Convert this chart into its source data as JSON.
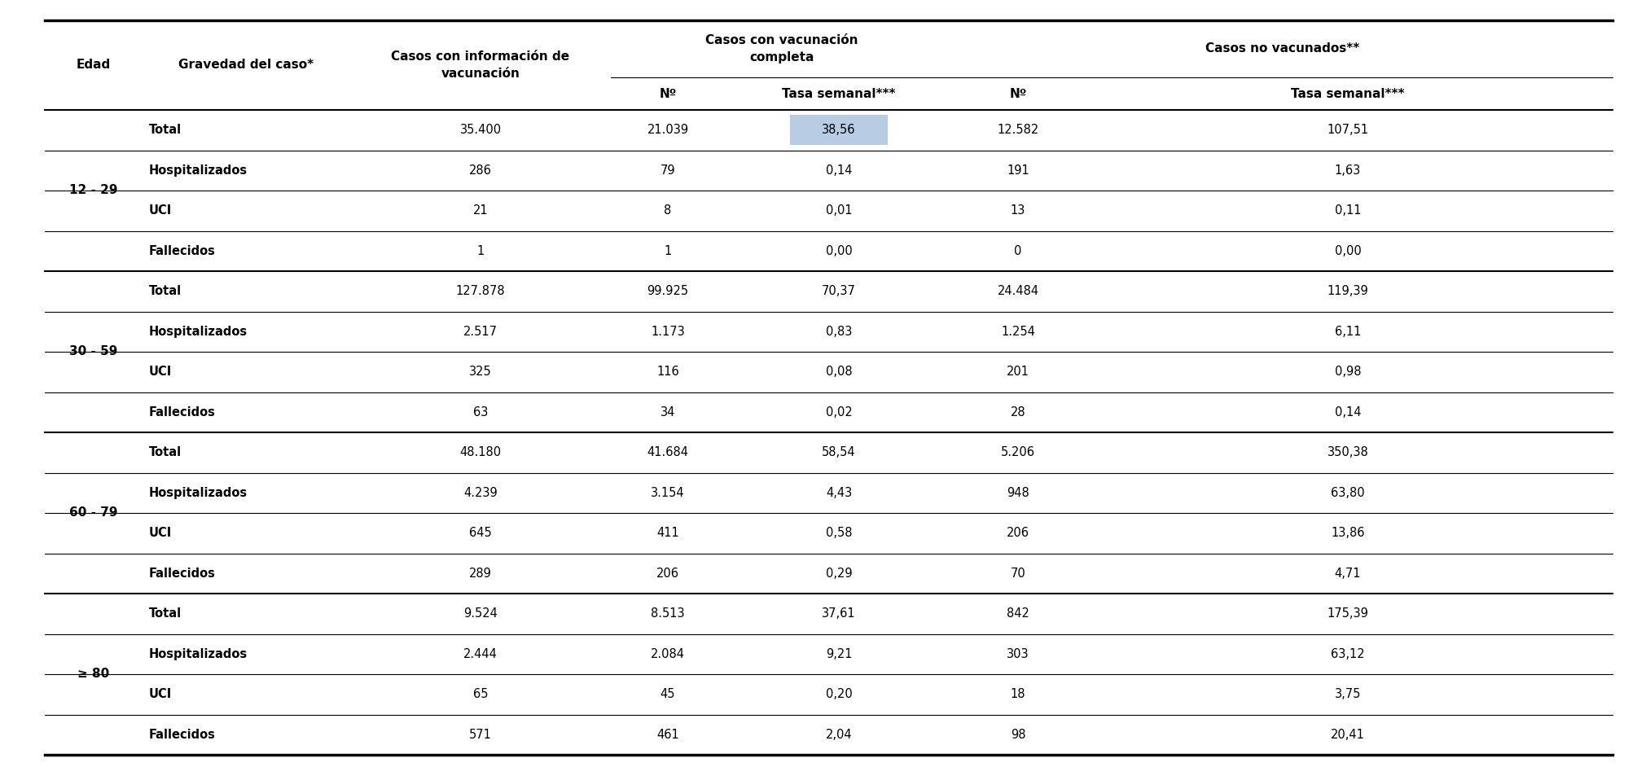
{
  "bg_color": "#ffffff",
  "groups": [
    {
      "age": "12 - 29",
      "rows": [
        {
          "gravedad": "Total",
          "info_vac": "35.400",
          "comp_n": "21.039",
          "comp_tasa": "38,56",
          "novac_n": "12.582",
          "novac_tasa": "107,51",
          "highlight_tasa": true
        },
        {
          "gravedad": "Hospitalizados",
          "info_vac": "286",
          "comp_n": "79",
          "comp_tasa": "0,14",
          "novac_n": "191",
          "novac_tasa": "1,63",
          "highlight_tasa": false
        },
        {
          "gravedad": "UCI",
          "info_vac": "21",
          "comp_n": "8",
          "comp_tasa": "0,01",
          "novac_n": "13",
          "novac_tasa": "0,11",
          "highlight_tasa": false
        },
        {
          "gravedad": "Fallecidos",
          "info_vac": "1",
          "comp_n": "1",
          "comp_tasa": "0,00",
          "novac_n": "0",
          "novac_tasa": "0,00",
          "highlight_tasa": false
        }
      ]
    },
    {
      "age": "30 - 59",
      "rows": [
        {
          "gravedad": "Total",
          "info_vac": "127.878",
          "comp_n": "99.925",
          "comp_tasa": "70,37",
          "novac_n": "24.484",
          "novac_tasa": "119,39",
          "highlight_tasa": false
        },
        {
          "gravedad": "Hospitalizados",
          "info_vac": "2.517",
          "comp_n": "1.173",
          "comp_tasa": "0,83",
          "novac_n": "1.254",
          "novac_tasa": "6,11",
          "highlight_tasa": false
        },
        {
          "gravedad": "UCI",
          "info_vac": "325",
          "comp_n": "116",
          "comp_tasa": "0,08",
          "novac_n": "201",
          "novac_tasa": "0,98",
          "highlight_tasa": false
        },
        {
          "gravedad": "Fallecidos",
          "info_vac": "63",
          "comp_n": "34",
          "comp_tasa": "0,02",
          "novac_n": "28",
          "novac_tasa": "0,14",
          "highlight_tasa": false
        }
      ]
    },
    {
      "age": "60 - 79",
      "rows": [
        {
          "gravedad": "Total",
          "info_vac": "48.180",
          "comp_n": "41.684",
          "comp_tasa": "58,54",
          "novac_n": "5.206",
          "novac_tasa": "350,38",
          "highlight_tasa": false
        },
        {
          "gravedad": "Hospitalizados",
          "info_vac": "4.239",
          "comp_n": "3.154",
          "comp_tasa": "4,43",
          "novac_n": "948",
          "novac_tasa": "63,80",
          "highlight_tasa": false
        },
        {
          "gravedad": "UCI",
          "info_vac": "645",
          "comp_n": "411",
          "comp_tasa": "0,58",
          "novac_n": "206",
          "novac_tasa": "13,86",
          "highlight_tasa": false
        },
        {
          "gravedad": "Fallecidos",
          "info_vac": "289",
          "comp_n": "206",
          "comp_tasa": "0,29",
          "novac_n": "70",
          "novac_tasa": "4,71",
          "highlight_tasa": false
        }
      ]
    },
    {
      "age": "≥ 80",
      "rows": [
        {
          "gravedad": "Total",
          "info_vac": "9.524",
          "comp_n": "8.513",
          "comp_tasa": "37,61",
          "novac_n": "842",
          "novac_tasa": "175,39",
          "highlight_tasa": false
        },
        {
          "gravedad": "Hospitalizados",
          "info_vac": "2.444",
          "comp_n": "2.084",
          "comp_tasa": "9,21",
          "novac_n": "303",
          "novac_tasa": "63,12",
          "highlight_tasa": false
        },
        {
          "gravedad": "UCI",
          "info_vac": "65",
          "comp_n": "45",
          "comp_tasa": "0,20",
          "novac_n": "18",
          "novac_tasa": "3,75",
          "highlight_tasa": false
        },
        {
          "gravedad": "Fallecidos",
          "info_vac": "571",
          "comp_n": "461",
          "comp_tasa": "2,04",
          "novac_n": "98",
          "novac_tasa": "20,41",
          "highlight_tasa": false
        }
      ]
    }
  ],
  "highlight_color": "#b8cce4",
  "font_size": 11.0,
  "font_size_small": 10.5
}
